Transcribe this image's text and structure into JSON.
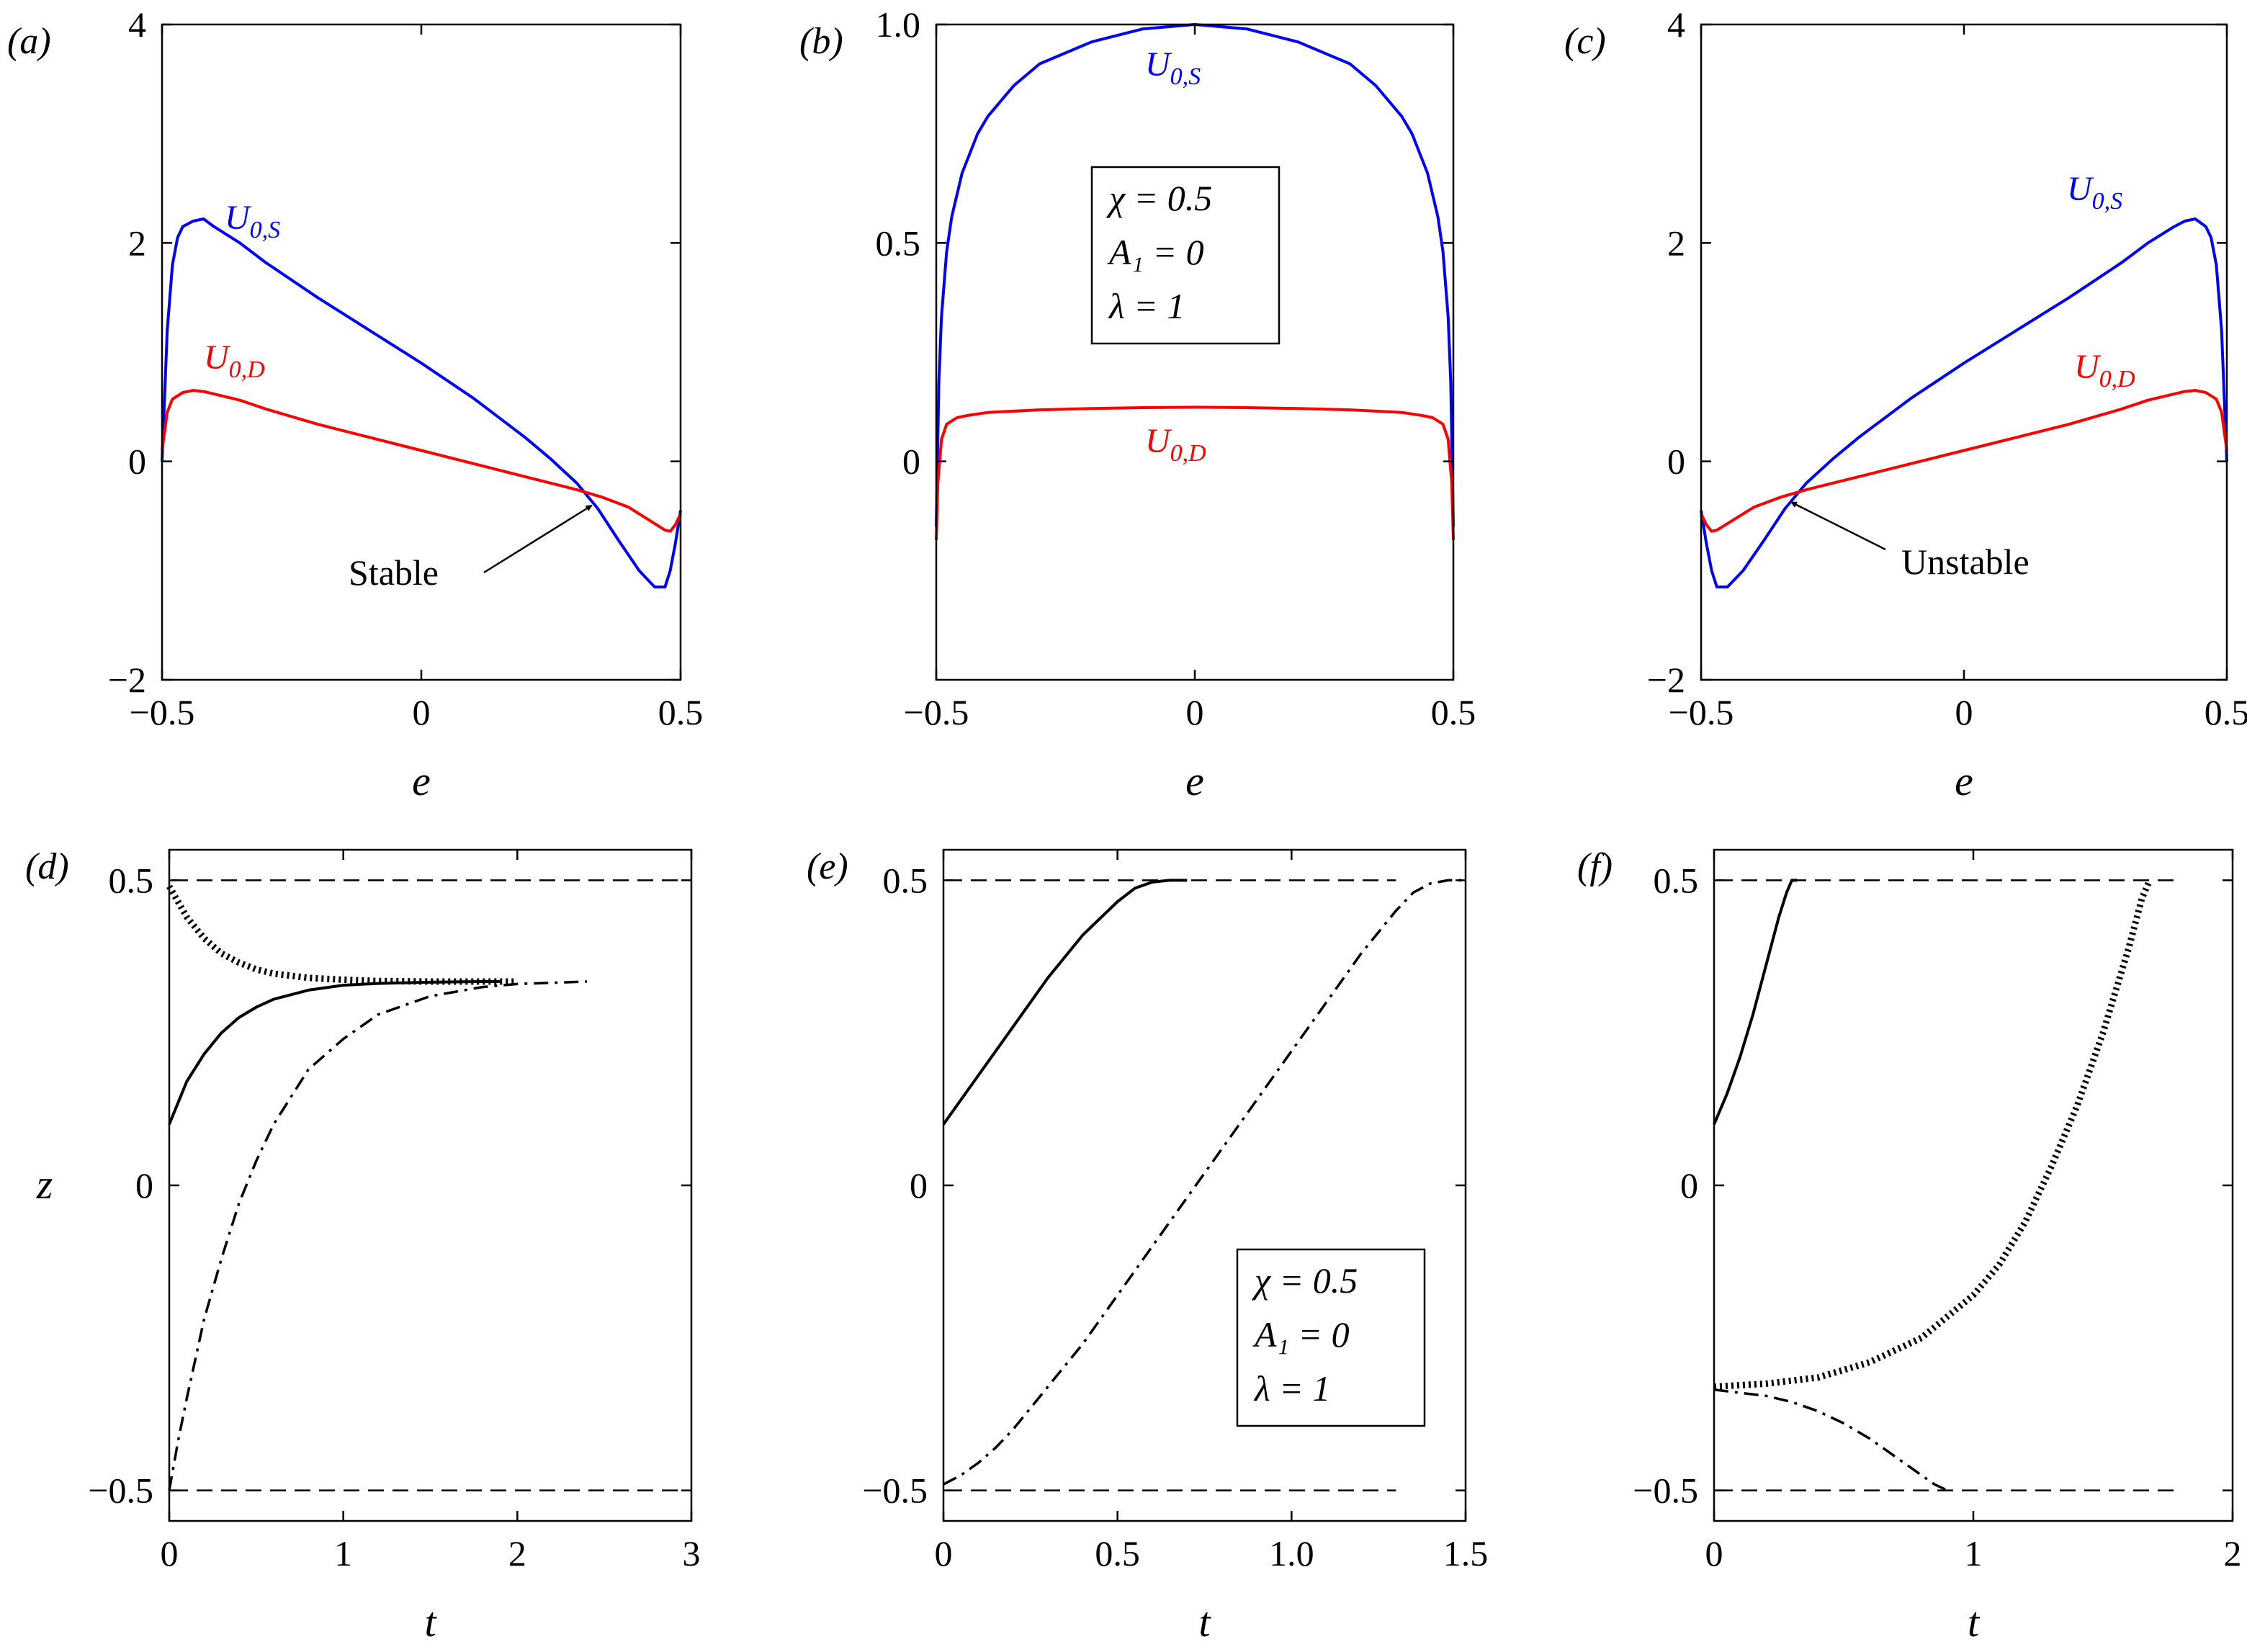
{
  "figure": {
    "top_xlabel": "e",
    "bottom_xlabel": "t",
    "bottom_ylabel": "z"
  },
  "params": {
    "chi": "χ = 0.5",
    "a1": "A₁ = 0",
    "lambda": "λ = 1"
  },
  "chart_data": [
    {
      "panel": "(a)",
      "type": "line",
      "xlabel": "e",
      "xlim": [
        -0.5,
        0.5
      ],
      "ylim": [
        -2,
        4
      ],
      "xticks": [
        -0.5,
        0,
        0.5
      ],
      "xtick_labels": [
        "−0.5",
        "0",
        "0.5"
      ],
      "yticks": [
        -2,
        0,
        2,
        4
      ],
      "ytick_labels": [
        "−2",
        "0",
        "2",
        "4"
      ],
      "series": [
        {
          "name": "U0,S",
          "color": "#0000ff",
          "style": "solid",
          "x": [
            -0.5,
            -0.49,
            -0.48,
            -0.47,
            -0.46,
            -0.44,
            -0.42,
            -0.4,
            -0.35,
            -0.3,
            -0.2,
            -0.1,
            0,
            0.1,
            0.2,
            0.25,
            0.3,
            0.34,
            0.38,
            0.42,
            0.45,
            0.47,
            0.48,
            0.49,
            0.5
          ],
          "y": [
            0,
            1.2,
            1.8,
            2.05,
            2.15,
            2.2,
            2.22,
            2.15,
            2.0,
            1.82,
            1.5,
            1.2,
            0.9,
            0.58,
            0.22,
            0.02,
            -0.2,
            -0.43,
            -0.72,
            -1.0,
            -1.15,
            -1.15,
            -1.0,
            -0.75,
            -0.45
          ]
        },
        {
          "name": "U0,D",
          "color": "#ff0000",
          "style": "solid",
          "x": [
            -0.5,
            -0.49,
            -0.48,
            -0.46,
            -0.44,
            -0.42,
            -0.35,
            -0.3,
            -0.2,
            -0.1,
            0,
            0.1,
            0.2,
            0.3,
            0.35,
            0.4,
            0.44,
            0.47,
            0.48,
            0.49,
            0.5
          ],
          "y": [
            0.1,
            0.45,
            0.57,
            0.63,
            0.65,
            0.64,
            0.56,
            0.48,
            0.34,
            0.22,
            0.1,
            -0.02,
            -0.14,
            -0.26,
            -0.33,
            -0.42,
            -0.54,
            -0.63,
            -0.64,
            -0.58,
            -0.48
          ]
        }
      ],
      "labels": {
        "u0s": "U",
        "u0s_sub": "0,S",
        "u0d": "U",
        "u0d_sub": "0,D"
      },
      "annotation": {
        "text": "Stable",
        "x": 0.34,
        "y": -0.35
      }
    },
    {
      "panel": "(b)",
      "type": "line",
      "xlabel": "e",
      "xlim": [
        -0.5,
        0.5
      ],
      "ylim": [
        -0.5,
        1.0
      ],
      "xticks": [
        -0.5,
        0,
        0.5
      ],
      "xtick_labels": [
        "−0.5",
        "0",
        "0.5"
      ],
      "yticks": [
        0,
        0.5,
        1.0
      ],
      "ytick_labels": [
        "0",
        "0.5",
        "1.0"
      ],
      "series": [
        {
          "name": "U0,S",
          "color": "#0000ff",
          "style": "solid",
          "x": [
            -0.5,
            -0.495,
            -0.49,
            -0.48,
            -0.47,
            -0.45,
            -0.42,
            -0.4,
            -0.35,
            -0.3,
            -0.2,
            -0.1,
            0,
            0.1,
            0.2,
            0.3,
            0.35,
            0.4,
            0.42,
            0.45,
            0.47,
            0.48,
            0.49,
            0.495,
            0.5
          ],
          "y": [
            -0.15,
            0.18,
            0.33,
            0.48,
            0.56,
            0.66,
            0.75,
            0.79,
            0.86,
            0.91,
            0.96,
            0.99,
            1.0,
            0.99,
            0.96,
            0.91,
            0.86,
            0.79,
            0.75,
            0.66,
            0.56,
            0.48,
            0.33,
            0.18,
            -0.15
          ]
        },
        {
          "name": "U0,D",
          "color": "#ff0000",
          "style": "solid",
          "x": [
            -0.5,
            -0.497,
            -0.49,
            -0.48,
            -0.46,
            -0.44,
            -0.4,
            -0.3,
            -0.2,
            -0.1,
            0,
            0.1,
            0.2,
            0.3,
            0.4,
            0.44,
            0.46,
            0.48,
            0.49,
            0.497,
            0.5
          ],
          "y": [
            -0.18,
            -0.05,
            0.05,
            0.085,
            0.1,
            0.105,
            0.112,
            0.118,
            0.121,
            0.123,
            0.124,
            0.123,
            0.121,
            0.118,
            0.112,
            0.105,
            0.1,
            0.085,
            0.05,
            -0.05,
            -0.18
          ]
        }
      ],
      "labels": {
        "u0s": "U",
        "u0s_sub": "0,S",
        "u0d": "U",
        "u0d_sub": "0,D"
      }
    },
    {
      "panel": "(c)",
      "type": "line",
      "xlabel": "e",
      "xlim": [
        -0.5,
        0.5
      ],
      "ylim": [
        -2,
        4
      ],
      "xticks": [
        -0.5,
        0,
        0.5
      ],
      "xtick_labels": [
        "−0.5",
        "0",
        "0.5"
      ],
      "yticks": [
        -2,
        0,
        2,
        4
      ],
      "ytick_labels": [
        "−2",
        "0",
        "2",
        "4"
      ],
      "series": [
        {
          "name": "U0,S",
          "color": "#0000ff",
          "style": "solid",
          "x": [
            -0.5,
            -0.49,
            -0.48,
            -0.47,
            -0.45,
            -0.42,
            -0.38,
            -0.34,
            -0.3,
            -0.25,
            -0.2,
            -0.1,
            0,
            0.1,
            0.2,
            0.3,
            0.35,
            0.4,
            0.42,
            0.44,
            0.46,
            0.47,
            0.48,
            0.49,
            0.5
          ],
          "y": [
            -0.45,
            -0.75,
            -1.0,
            -1.15,
            -1.15,
            -1.0,
            -0.72,
            -0.43,
            -0.2,
            0.02,
            0.22,
            0.58,
            0.9,
            1.2,
            1.5,
            1.82,
            2.0,
            2.15,
            2.2,
            2.22,
            2.15,
            2.05,
            1.8,
            1.2,
            0
          ]
        },
        {
          "name": "U0,D",
          "color": "#ff0000",
          "style": "solid",
          "x": [
            -0.5,
            -0.49,
            -0.48,
            -0.47,
            -0.44,
            -0.4,
            -0.35,
            -0.3,
            -0.2,
            -0.1,
            0,
            0.1,
            0.2,
            0.3,
            0.35,
            0.42,
            0.44,
            0.46,
            0.48,
            0.49,
            0.5
          ],
          "y": [
            -0.48,
            -0.58,
            -0.64,
            -0.63,
            -0.54,
            -0.42,
            -0.33,
            -0.26,
            -0.14,
            -0.02,
            0.1,
            0.22,
            0.34,
            0.48,
            0.56,
            0.64,
            0.65,
            0.63,
            0.57,
            0.45,
            0.1
          ]
        }
      ],
      "labels": {
        "u0s": "U",
        "u0s_sub": "0,S",
        "u0d": "U",
        "u0d_sub": "0,D"
      },
      "annotation": {
        "text": "Unstable",
        "x": -0.34,
        "y": -0.32
      }
    },
    {
      "panel": "(d)",
      "type": "line",
      "xlabel": "t",
      "ylabel": "z",
      "xlim": [
        0,
        3
      ],
      "ylim": [
        -0.55,
        0.55
      ],
      "xticks": [
        0,
        1,
        2,
        3
      ],
      "xtick_labels": [
        "0",
        "1",
        "2",
        "3"
      ],
      "yticks": [
        -0.5,
        0,
        0.5
      ],
      "ytick_labels": [
        "−0.5",
        "0",
        "0.5"
      ],
      "hlines": [
        0.5,
        -0.5
      ],
      "series": [
        {
          "name": "dotted",
          "style": "dotted",
          "x": [
            0,
            0.1,
            0.2,
            0.3,
            0.4,
            0.5,
            0.6,
            0.8,
            1.0,
            1.2,
            1.5,
            1.8,
            2.0
          ],
          "y": [
            0.49,
            0.44,
            0.405,
            0.38,
            0.365,
            0.354,
            0.347,
            0.34,
            0.337,
            0.335,
            0.334,
            0.334,
            0.334
          ]
        },
        {
          "name": "solid",
          "style": "solid",
          "x": [
            0,
            0.1,
            0.2,
            0.3,
            0.4,
            0.5,
            0.6,
            0.8,
            1.0,
            1.2,
            1.5,
            1.8,
            1.9
          ],
          "y": [
            0.1,
            0.17,
            0.215,
            0.25,
            0.275,
            0.292,
            0.305,
            0.32,
            0.328,
            0.331,
            0.333,
            0.334,
            0.334
          ]
        },
        {
          "name": "dashdot",
          "style": "dashdot",
          "x": [
            0,
            0.05,
            0.1,
            0.2,
            0.3,
            0.4,
            0.5,
            0.6,
            0.8,
            1.0,
            1.2,
            1.5,
            1.8,
            2.0,
            2.4
          ],
          "y": [
            -0.5,
            -0.42,
            -0.35,
            -0.22,
            -0.12,
            -0.03,
            0.04,
            0.1,
            0.19,
            0.24,
            0.28,
            0.31,
            0.325,
            0.33,
            0.334
          ]
        }
      ]
    },
    {
      "panel": "(e)",
      "type": "line",
      "xlabel": "t",
      "xlim": [
        0,
        1.5
      ],
      "ylim": [
        -0.55,
        0.55
      ],
      "xticks": [
        0,
        0.5,
        1.0,
        1.5
      ],
      "xtick_labels": [
        "0",
        "0.5",
        "1.0",
        "1.5"
      ],
      "yticks": [
        -0.5,
        0,
        0.5
      ],
      "ytick_labels": [
        "−0.5",
        "0",
        "0.5"
      ],
      "hlines": [
        0.5,
        -0.5
      ],
      "hline_xmax": 1.3,
      "series": [
        {
          "name": "solid",
          "style": "solid",
          "x": [
            0,
            0.1,
            0.2,
            0.3,
            0.4,
            0.5,
            0.55,
            0.6,
            0.65,
            0.7
          ],
          "y": [
            0.1,
            0.18,
            0.26,
            0.34,
            0.41,
            0.465,
            0.487,
            0.497,
            0.5,
            0.5
          ]
        },
        {
          "name": "dashdot",
          "style": "dashdot",
          "x": [
            0,
            0.05,
            0.1,
            0.15,
            0.2,
            0.3,
            0.4,
            0.5,
            0.6,
            0.7,
            0.8,
            0.9,
            1.0,
            1.1,
            1.2,
            1.3,
            1.35,
            1.4,
            1.45,
            1.5
          ],
          "y": [
            -0.49,
            -0.475,
            -0.455,
            -0.43,
            -0.4,
            -0.33,
            -0.26,
            -0.18,
            -0.1,
            -0.02,
            0.06,
            0.14,
            0.22,
            0.3,
            0.38,
            0.45,
            0.48,
            0.495,
            0.5,
            0.5
          ]
        }
      ]
    },
    {
      "panel": "(f)",
      "type": "line",
      "xlabel": "t",
      "xlim": [
        0,
        2
      ],
      "ylim": [
        -0.55,
        0.55
      ],
      "xticks": [
        0,
        1,
        2
      ],
      "xtick_labels": [
        "0",
        "1",
        "2"
      ],
      "yticks": [
        -0.5,
        0,
        0.5
      ],
      "ytick_labels": [
        "−0.5",
        "0",
        "0.5"
      ],
      "hlines": [
        0.5,
        -0.5
      ],
      "hline_xmax": 1.8,
      "series": [
        {
          "name": "solid",
          "style": "solid",
          "x": [
            0,
            0.05,
            0.1,
            0.15,
            0.2,
            0.25,
            0.28,
            0.3,
            0.32
          ],
          "y": [
            0.1,
            0.15,
            0.21,
            0.28,
            0.36,
            0.44,
            0.48,
            0.5,
            0.5
          ]
        },
        {
          "name": "dotted",
          "style": "dotted",
          "x": [
            0,
            0.2,
            0.4,
            0.6,
            0.8,
            1.0,
            1.1,
            1.2,
            1.3,
            1.4,
            1.5,
            1.6,
            1.65,
            1.68
          ],
          "y": [
            -0.33,
            -0.325,
            -0.315,
            -0.29,
            -0.25,
            -0.18,
            -0.13,
            -0.06,
            0.03,
            0.13,
            0.25,
            0.39,
            0.47,
            0.5
          ]
        },
        {
          "name": "dashdot",
          "style": "dashdot",
          "x": [
            0,
            0.1,
            0.2,
            0.3,
            0.4,
            0.5,
            0.6,
            0.7,
            0.8,
            0.85,
            0.9
          ],
          "y": [
            -0.335,
            -0.34,
            -0.345,
            -0.355,
            -0.37,
            -0.39,
            -0.415,
            -0.445,
            -0.475,
            -0.49,
            -0.5
          ]
        }
      ]
    }
  ]
}
